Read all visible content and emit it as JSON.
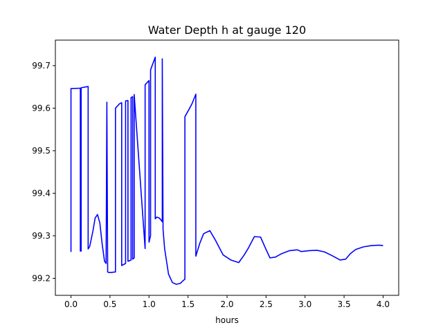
{
  "chart_data": {
    "type": "line",
    "title": "Water Depth h at gauge 120",
    "xlabel": "hours",
    "ylabel": "",
    "xlim": [
      -0.2,
      4.2
    ],
    "ylim": [
      99.16,
      99.76
    ],
    "xticks": [
      0.0,
      0.5,
      1.0,
      1.5,
      2.0,
      2.5,
      3.0,
      3.5,
      4.0
    ],
    "xtick_labels": [
      "0.0",
      "0.5",
      "1.0",
      "1.5",
      "2.0",
      "2.5",
      "3.0",
      "3.5",
      "4.0"
    ],
    "yticks": [
      99.2,
      99.3,
      99.4,
      99.5,
      99.6,
      99.7
    ],
    "ytick_labels": [
      "99.2",
      "99.3",
      "99.4",
      "99.5",
      "99.6",
      "99.7"
    ],
    "grid": false,
    "series": [
      {
        "color": "#0000ff",
        "x": [
          0.0,
          0.0,
          0.12,
          0.12,
          0.13,
          0.13,
          0.22,
          0.22,
          0.24,
          0.28,
          0.31,
          0.34,
          0.37,
          0.4,
          0.43,
          0.45,
          0.46,
          0.46,
          0.47,
          0.47,
          0.48,
          0.52,
          0.57,
          0.57,
          0.62,
          0.65,
          0.65,
          0.7,
          0.7,
          0.73,
          0.73,
          0.77,
          0.77,
          0.79,
          0.79,
          0.81,
          0.81,
          0.95,
          0.95,
          1.0,
          1.0,
          1.02,
          1.02,
          1.08,
          1.08,
          1.1,
          1.13,
          1.15,
          1.17,
          1.17,
          1.18,
          1.2,
          1.25,
          1.3,
          1.35,
          1.4,
          1.44,
          1.46,
          1.46,
          1.5,
          1.55,
          1.6,
          1.6,
          1.65,
          1.7,
          1.78,
          1.85,
          1.95,
          2.05,
          2.15,
          2.22,
          2.27,
          2.35,
          2.43,
          2.48,
          2.55,
          2.62,
          2.7,
          2.8,
          2.9,
          2.95,
          3.05,
          3.15,
          3.25,
          3.35,
          3.45,
          3.52,
          3.58,
          3.65,
          3.75,
          3.85,
          3.95,
          4.0
        ],
        "y": [
          99.262,
          99.646,
          99.647,
          99.264,
          99.264,
          99.648,
          99.651,
          99.269,
          99.275,
          99.31,
          99.342,
          99.35,
          99.33,
          99.28,
          99.24,
          99.235,
          99.614,
          99.61,
          99.22,
          99.215,
          99.214,
          99.214,
          99.215,
          99.6,
          99.61,
          99.613,
          99.23,
          99.235,
          99.617,
          99.618,
          99.24,
          99.243,
          99.625,
          99.627,
          99.245,
          99.248,
          99.632,
          99.27,
          99.655,
          99.665,
          99.285,
          99.3,
          99.69,
          99.72,
          99.34,
          99.344,
          99.342,
          99.338,
          99.333,
          99.716,
          99.315,
          99.27,
          99.21,
          99.19,
          99.186,
          99.188,
          99.195,
          99.198,
          99.58,
          99.593,
          99.61,
          99.633,
          99.252,
          99.282,
          99.305,
          99.312,
          99.29,
          99.255,
          99.243,
          99.237,
          99.255,
          99.27,
          99.298,
          99.297,
          99.276,
          99.248,
          99.25,
          99.258,
          99.265,
          99.267,
          99.263,
          99.265,
          99.266,
          99.262,
          99.253,
          99.243,
          99.245,
          99.258,
          99.268,
          99.274,
          99.277,
          99.278,
          99.277
        ]
      }
    ]
  }
}
